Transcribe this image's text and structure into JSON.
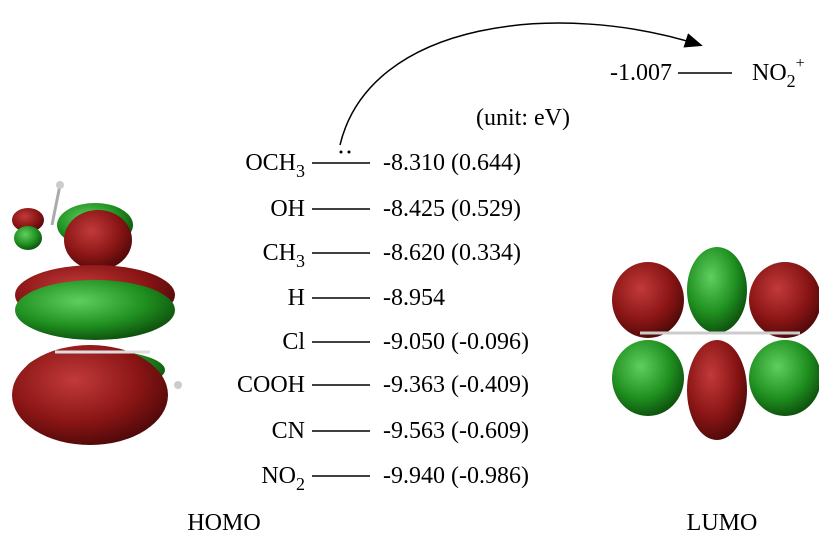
{
  "header": {
    "unit": "(unit: eV)"
  },
  "lumo_level": {
    "energy": "-1.007",
    "label": "NO",
    "sub": "2",
    "sup": "+"
  },
  "levels": [
    {
      "label": "OCH",
      "sub": "3",
      "energy": "-8.310",
      "diff": "(0.644)"
    },
    {
      "label": "OH",
      "energy": "-8.425",
      "diff": "(0.529)"
    },
    {
      "label": "CH",
      "sub": "3",
      "energy": "-8.620",
      "diff": "(0.334)"
    },
    {
      "label": "H",
      "energy": "-8.954"
    },
    {
      "label": "Cl",
      "energy": "-9.050",
      "diff": "(-0.096)"
    },
    {
      "label": "COOH",
      "energy": "-9.363",
      "diff": "(-0.409)"
    },
    {
      "label": "CN",
      "energy": "-9.563",
      "diff": "(-0.609)"
    },
    {
      "label": "NO",
      "sub": "2",
      "energy": "-9.940",
      "diff": "(-0.986)"
    }
  ],
  "captions": {
    "homo": "HOMO",
    "lumo": "LUMO"
  }
}
